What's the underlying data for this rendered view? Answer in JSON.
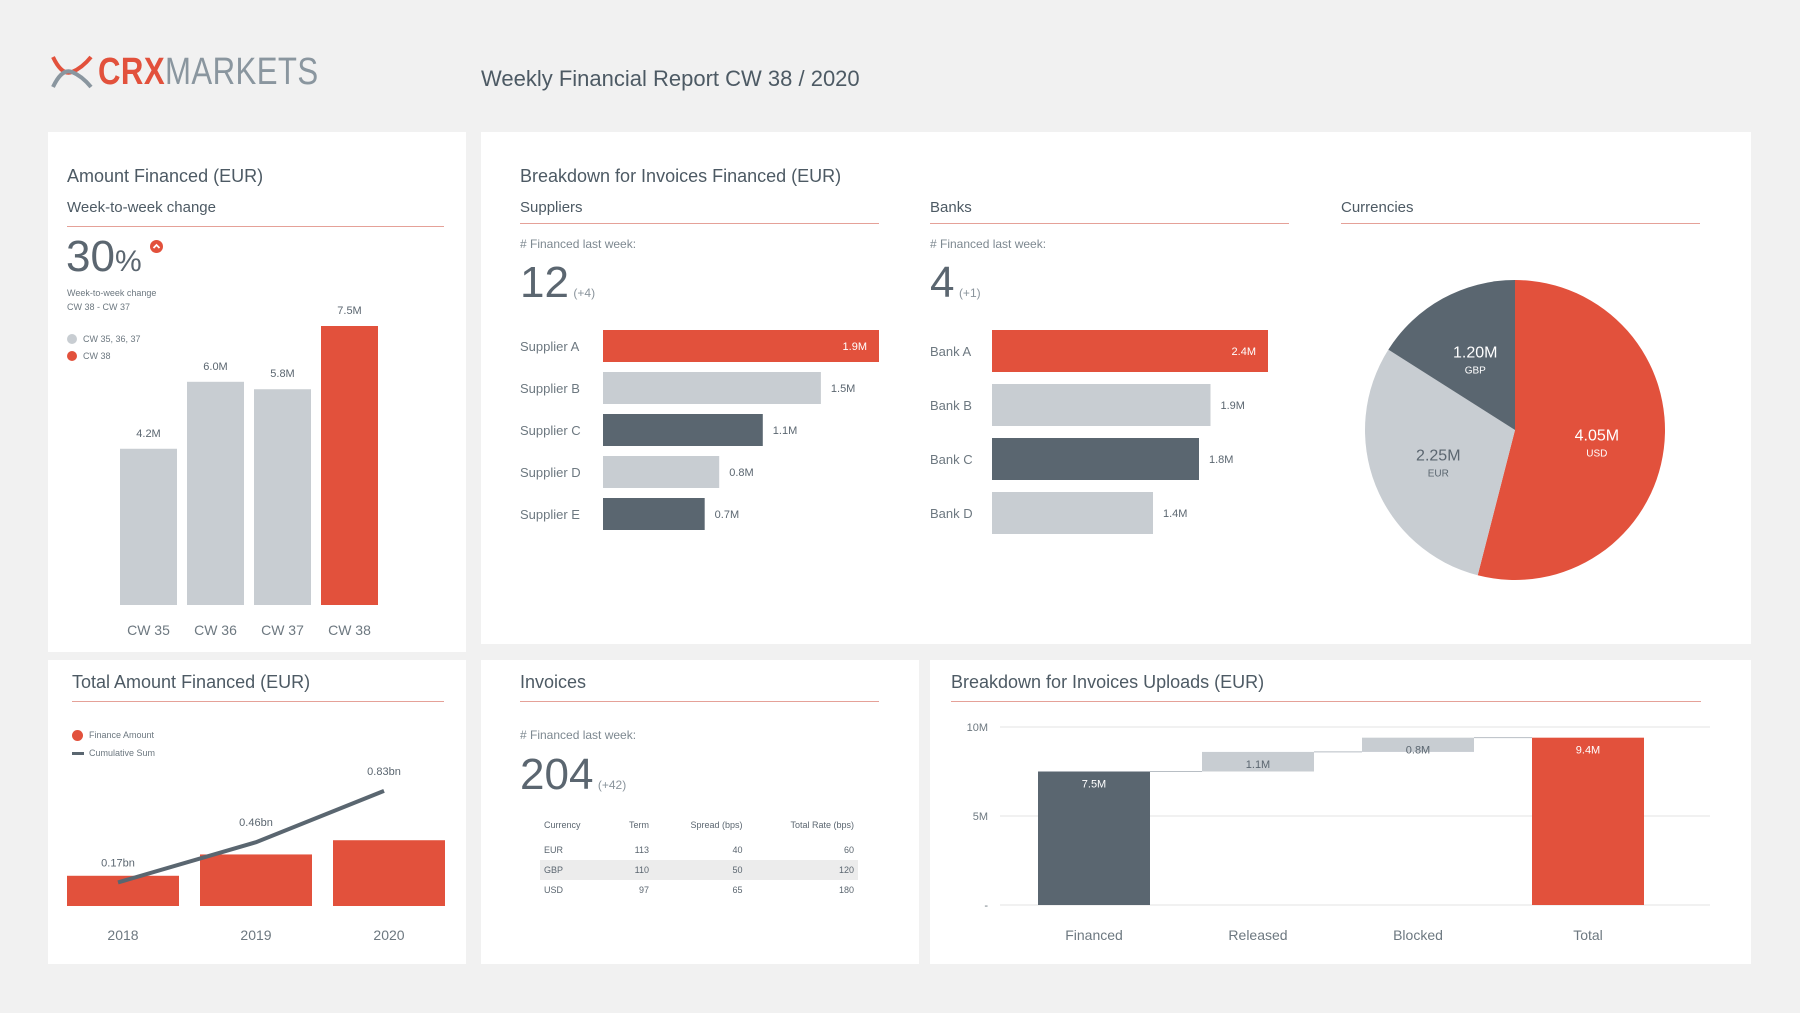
{
  "header": {
    "logo_crx": "CRX",
    "logo_markets": "MARKETS",
    "report_title": "Weekly Financial Report CW 38 / 2020"
  },
  "colors": {
    "accent": "#e2513c",
    "grey": "#c8cdd2",
    "dark": "#5a6670",
    "bg": "#f1f1f1"
  },
  "amount_financed": {
    "title": "Amount Financed (EUR)",
    "subtitle": "Week-to-week change",
    "change_value": "30",
    "change_unit": "%",
    "change_caption_1": "Week-to-week change",
    "change_caption_2": "CW 38 - CW 37",
    "legend": [
      "CW 35, 36, 37",
      "CW 38"
    ]
  },
  "total_financed": {
    "title": "Total Amount Financed (EUR)",
    "legend": [
      "Finance Amount",
      "Cumulative Sum"
    ]
  },
  "breakdown": {
    "title": "Breakdown for Invoices Financed (EUR)",
    "suppliers": {
      "title": "Suppliers",
      "label": "# Financed last week:",
      "count": "12",
      "delta": "(+4)"
    },
    "banks": {
      "title": "Banks",
      "label": "# Financed last week:",
      "count": "4",
      "delta": "(+1)"
    },
    "currencies": {
      "title": "Currencies"
    }
  },
  "invoices": {
    "title": "Invoices",
    "label": "# Financed last week:",
    "count": "204",
    "delta": "(+42)",
    "table": {
      "headers": [
        "Currency",
        "Term",
        "Spread (bps)",
        "Total Rate (bps)"
      ],
      "rows": [
        [
          "EUR",
          "113",
          "40",
          "60"
        ],
        [
          "GBP",
          "110",
          "50",
          "120"
        ],
        [
          "USD",
          "97",
          "65",
          "180"
        ]
      ]
    }
  },
  "uploads": {
    "title": "Breakdown for Invoices Uploads (EUR)"
  },
  "chart_data": [
    {
      "id": "weekly",
      "type": "bar",
      "title": "Amount Financed (EUR)",
      "categories": [
        "CW 35",
        "CW 36",
        "CW 37",
        "CW 38"
      ],
      "values": [
        4.2,
        6.0,
        5.8,
        7.5
      ],
      "labels": [
        "4.2M",
        "6.0M",
        "5.8M",
        "7.5M"
      ],
      "ylim": [
        0,
        7.5
      ],
      "highlight_index": 3
    },
    {
      "id": "total",
      "type": "bar",
      "title": "Total Amount Financed (EUR)",
      "categories": [
        "2018",
        "2019",
        "2020"
      ],
      "series": [
        {
          "name": "Finance Amount",
          "values": [
            0.17,
            0.29,
            0.37
          ]
        },
        {
          "name": "Cumulative Sum",
          "values": [
            0.17,
            0.46,
            0.83
          ],
          "labels": [
            "0.17bn",
            "0.46bn",
            "0.83bn"
          ]
        }
      ],
      "ylim": [
        0,
        0.9
      ]
    },
    {
      "id": "suppliers",
      "type": "bar",
      "orientation": "horizontal",
      "title": "Suppliers",
      "categories": [
        "Supplier A",
        "Supplier B",
        "Supplier C",
        "Supplier D",
        "Supplier E"
      ],
      "values": [
        1.9,
        1.5,
        1.1,
        0.8,
        0.7
      ],
      "labels": [
        "1.9M",
        "1.5M",
        "1.1M",
        "0.8M",
        "0.7M"
      ],
      "max": 1.9,
      "fills": [
        "accent",
        "grey",
        "dark",
        "grey",
        "dark"
      ]
    },
    {
      "id": "banks",
      "type": "bar",
      "orientation": "horizontal",
      "title": "Banks",
      "categories": [
        "Bank A",
        "Bank B",
        "Bank C",
        "Bank D"
      ],
      "values": [
        2.4,
        1.9,
        1.8,
        1.4
      ],
      "labels": [
        "2.4M",
        "1.9M",
        "1.8M",
        "1.4M"
      ],
      "max": 2.4,
      "fills": [
        "accent",
        "grey",
        "dark",
        "grey"
      ]
    },
    {
      "id": "currencies",
      "type": "pie",
      "title": "Currencies",
      "slices": [
        {
          "name": "USD",
          "value": 4.05,
          "label": "4.05M",
          "fill": "accent"
        },
        {
          "name": "EUR",
          "value": 2.25,
          "label": "2.25M",
          "fill": "grey"
        },
        {
          "name": "GBP",
          "value": 1.2,
          "label": "1.20M",
          "fill": "dark"
        }
      ]
    },
    {
      "id": "uploads",
      "type": "bar",
      "subtype": "waterfall",
      "title": "Breakdown for Invoices Uploads (EUR)",
      "categories": [
        "Financed",
        "Released",
        "Blocked",
        "Total"
      ],
      "values": [
        7.5,
        1.1,
        0.8,
        9.4
      ],
      "labels": [
        "7.5M",
        "1.1M",
        "0.8M",
        "9.4M"
      ],
      "y_ticks": [
        "10M",
        "5M",
        "-"
      ],
      "ylim": [
        0,
        10
      ]
    }
  ]
}
